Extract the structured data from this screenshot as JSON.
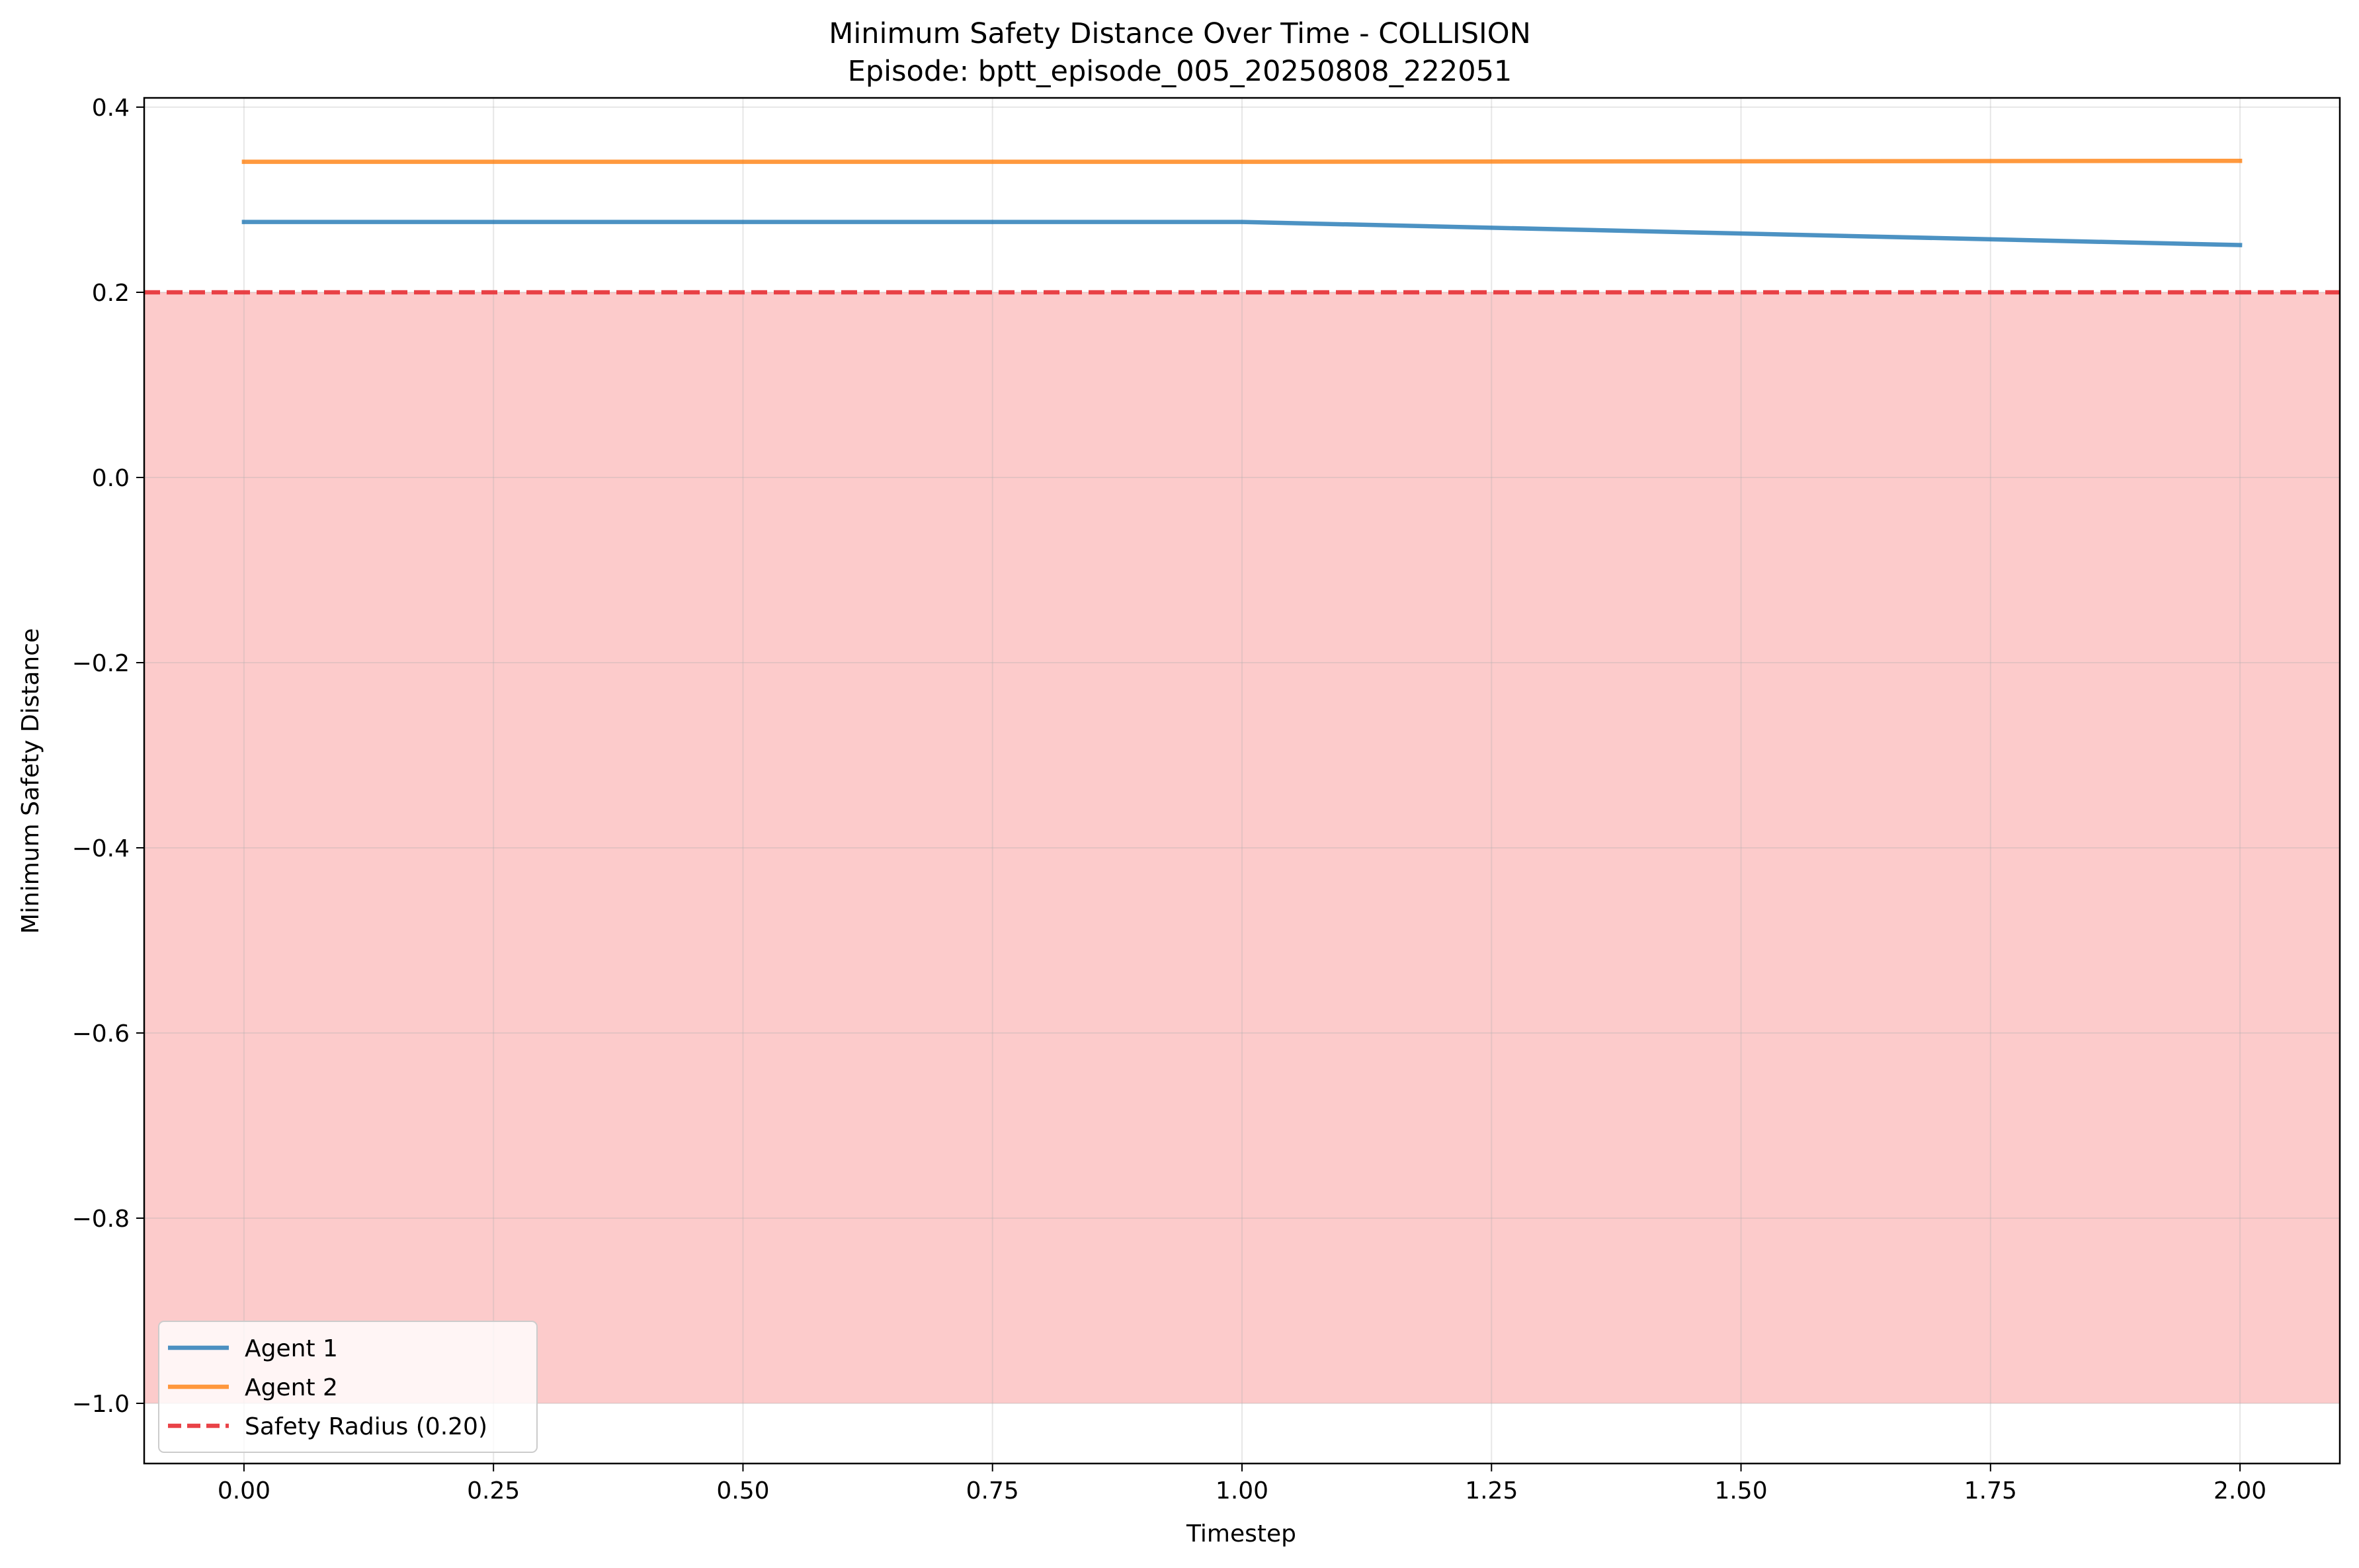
{
  "chart_data": {
    "type": "line",
    "title": "Minimum Safety Distance Over Time - COLLISION",
    "subtitle": "Episode: bptt_episode_005_20250808_222051",
    "xlabel": "Timestep",
    "ylabel": "Minimum Safety Distance",
    "xlim": [
      -0.1,
      2.1
    ],
    "ylim": [
      -1.065,
      0.41
    ],
    "x_ticks": [
      0.0,
      0.25,
      0.5,
      0.75,
      1.0,
      1.25,
      1.5,
      1.75,
      2.0
    ],
    "x_tick_labels": [
      "0.00",
      "0.25",
      "0.50",
      "0.75",
      "1.00",
      "1.25",
      "1.50",
      "1.75",
      "2.00"
    ],
    "y_ticks": [
      -1.0,
      -0.8,
      -0.6,
      -0.4,
      -0.2,
      0.0,
      0.2,
      0.4
    ],
    "y_tick_labels": [
      "−1.0",
      "−0.8",
      "−0.6",
      "−0.4",
      "−0.2",
      "0.0",
      "0.2",
      "0.4"
    ],
    "grid": true,
    "legend_position": "lower-left",
    "series": [
      {
        "name": "Agent 1",
        "color": "#1f77b4",
        "x": [
          0,
          1,
          2
        ],
        "y": [
          0.276,
          0.276,
          0.251
        ]
      },
      {
        "name": "Agent 2",
        "color": "#ff7f0e",
        "x": [
          0,
          1,
          2
        ],
        "y": [
          0.341,
          0.341,
          0.342
        ]
      }
    ],
    "safety_radius": {
      "name": "Safety Radius (0.20)",
      "value": 0.2,
      "color": "#e8383d",
      "style": "dashed"
    },
    "collision_zone": {
      "from": -1.0,
      "to": 0.2,
      "color": "#fccbcb"
    }
  }
}
